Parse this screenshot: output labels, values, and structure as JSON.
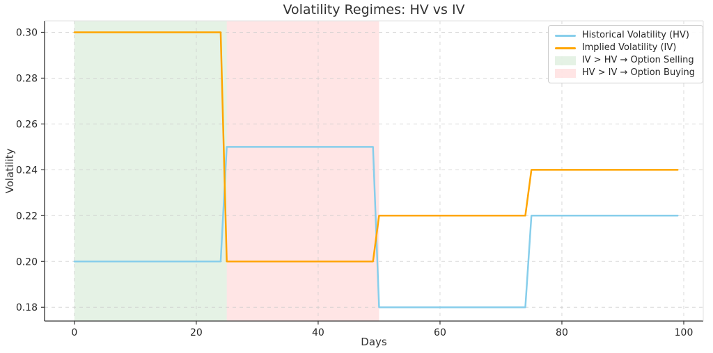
{
  "chart_data": {
    "type": "line",
    "title": "Volatility Regimes: HV vs IV",
    "xlabel": "Days",
    "ylabel": "Volatility",
    "xlim": [
      -4.9,
      103.2
    ],
    "ylim": [
      0.174,
      0.305
    ],
    "x_ticks": [
      0,
      20,
      40,
      60,
      80,
      100
    ],
    "y_ticks": [
      0.18,
      0.2,
      0.22,
      0.24,
      0.26,
      0.28,
      0.3
    ],
    "y_tick_labels": [
      "0.18",
      "0.20",
      "0.22",
      "0.24",
      "0.26",
      "0.28",
      "0.30"
    ],
    "grid": true,
    "grid_style": "dashed",
    "legend_position": "upper right",
    "x": [
      0,
      24,
      25,
      49,
      50,
      74,
      75,
      99
    ],
    "series": [
      {
        "name": "Historical Volatility (HV)",
        "color": "#87CEEB",
        "values": [
          0.2,
          0.2,
          0.25,
          0.25,
          0.18,
          0.18,
          0.22,
          0.22
        ]
      },
      {
        "name": "Implied Volatility (IV)",
        "color": "#FFA500",
        "values": [
          0.3,
          0.3,
          0.2,
          0.2,
          0.22,
          0.22,
          0.24,
          0.24
        ]
      }
    ],
    "regions": [
      {
        "label": "IV > HV → Option Selling",
        "from": 0,
        "to": 25,
        "fill": "rgba(0,128,0,0.10)"
      },
      {
        "label": "HV > IV → Option Buying",
        "from": 25,
        "to": 50,
        "fill": "rgba(255,0,0,0.10)"
      }
    ],
    "regimes": [
      {
        "days": "0-24",
        "hv": 0.2,
        "iv": 0.3,
        "shading": "green"
      },
      {
        "days": "25-49",
        "hv": 0.25,
        "iv": 0.2,
        "shading": "pink"
      },
      {
        "days": "50-74",
        "hv": 0.18,
        "iv": 0.22,
        "shading": "none"
      },
      {
        "days": "75-99",
        "hv": 0.22,
        "iv": 0.24,
        "shading": "none"
      }
    ],
    "legend": [
      {
        "label": "Historical Volatility (HV)",
        "swatch": "line",
        "color": "#87CEEB"
      },
      {
        "label": "Implied Volatility (IV)",
        "swatch": "line",
        "color": "#FFA500"
      },
      {
        "label": "IV > HV → Option Selling",
        "swatch": "patch",
        "color": "rgba(0,128,0,0.10)"
      },
      {
        "label": "HV > IV → Option Buying",
        "swatch": "patch",
        "color": "rgba(255,0,0,0.10)"
      }
    ],
    "colors": {
      "hv_line": "#87CEEB",
      "iv_line": "#FFA500",
      "selling_region": "rgba(0,128,0,0.10)",
      "buying_region": "rgba(255,0,0,0.10)",
      "grid": "#cccccc",
      "spine_dark": "#333333",
      "spine_light": "#e2e2e2",
      "text": "#262626"
    }
  }
}
